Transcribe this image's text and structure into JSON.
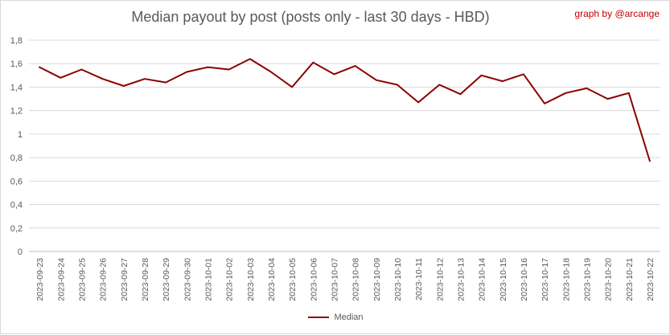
{
  "header": {
    "title": "Median payout by post (posts only - last 30 days - HBD)",
    "credit": "graph by @arcange"
  },
  "chart_data": {
    "type": "line",
    "title": "Median payout by post (posts only - last 30 days - HBD)",
    "xlabel": "",
    "ylabel": "",
    "ylim": [
      0,
      1.8
    ],
    "y_ticks": [
      "0",
      "0,2",
      "0,4",
      "0,6",
      "0,8",
      "1",
      "1,2",
      "1,4",
      "1,6",
      "1,8"
    ],
    "grid": true,
    "legend_position": "bottom",
    "categories": [
      "2023-09-23",
      "2023-09-24",
      "2023-09-25",
      "2023-09-26",
      "2023-09-27",
      "2023-09-28",
      "2023-09-29",
      "2023-09-30",
      "2023-10-01",
      "2023-10-02",
      "2023-10-03",
      "2023-10-04",
      "2023-10-05",
      "2023-10-06",
      "2023-10-07",
      "2023-10-08",
      "2023-10-09",
      "2023-10-10",
      "2023-10-11",
      "2023-10-12",
      "2023-10-13",
      "2023-10-14",
      "2023-10-15",
      "2023-10-16",
      "2023-10-17",
      "2023-10-18",
      "2023-10-19",
      "2023-10-20",
      "2023-10-21",
      "2023-10-22"
    ],
    "series": [
      {
        "name": "Median",
        "color": "#8b0000",
        "values": [
          1.57,
          1.48,
          1.55,
          1.47,
          1.41,
          1.47,
          1.44,
          1.53,
          1.57,
          1.55,
          1.64,
          1.53,
          1.4,
          1.61,
          1.51,
          1.58,
          1.46,
          1.42,
          1.27,
          1.42,
          1.34,
          1.5,
          1.45,
          1.51,
          1.26,
          1.35,
          1.39,
          1.3,
          1.35,
          0.77
        ]
      }
    ]
  }
}
